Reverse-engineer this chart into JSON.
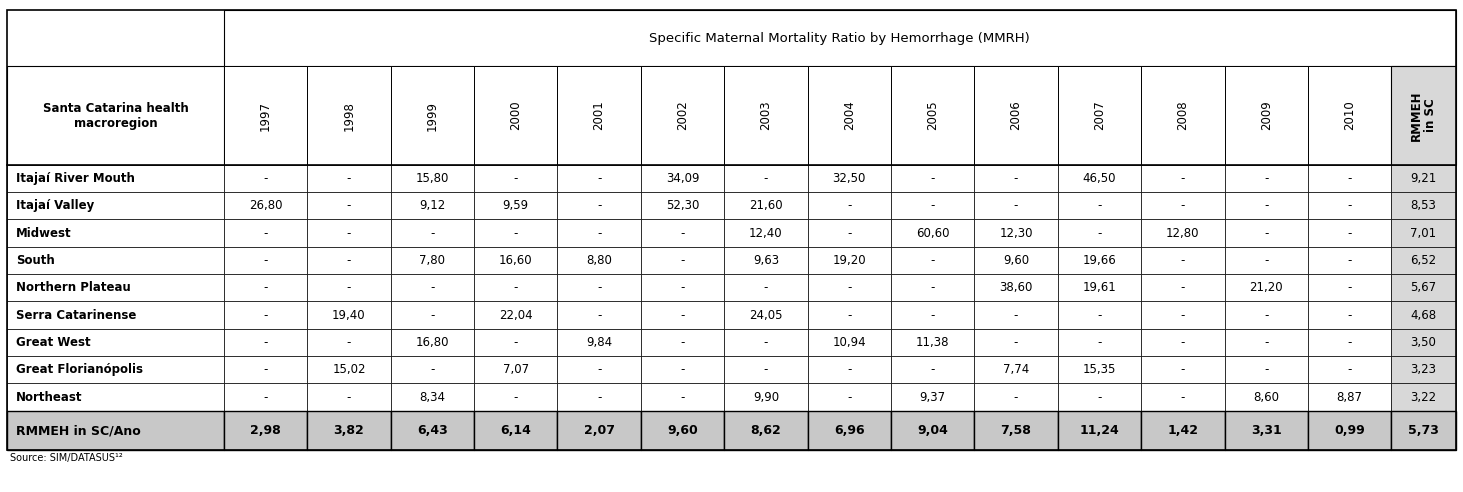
{
  "title": "Specific Maternal Mortality Ratio by Hemorrhage (MMRH)",
  "col_header_left": "Santa Catarina health\nmacroregion",
  "year_columns": [
    "1997",
    "1998",
    "1999",
    "2000",
    "2001",
    "2002",
    "2003",
    "2004",
    "2005",
    "2006",
    "2007",
    "2008",
    "2009",
    "2010"
  ],
  "last_col": "RMMEH\nin SC",
  "rows": [
    {
      "region": "Itajaí River Mouth",
      "values": [
        "-",
        "-",
        "15,80",
        "-",
        "-",
        "34,09",
        "-",
        "32,50",
        "-",
        "-",
        "46,50",
        "-",
        "-",
        "-"
      ],
      "last": "9,21"
    },
    {
      "region": "Itajaí Valley",
      "values": [
        "26,80",
        "-",
        "9,12",
        "9,59",
        "-",
        "52,30",
        "21,60",
        "-",
        "-",
        "-",
        "-",
        "-",
        "-",
        "-"
      ],
      "last": "8,53"
    },
    {
      "region": "Midwest",
      "values": [
        "-",
        "-",
        "-",
        "-",
        "-",
        "-",
        "12,40",
        "-",
        "60,60",
        "12,30",
        "-",
        "12,80",
        "-",
        "-"
      ],
      "last": "7,01"
    },
    {
      "region": "South",
      "values": [
        "-",
        "-",
        "7,80",
        "16,60",
        "8,80",
        "-",
        "9,63",
        "19,20",
        "-",
        "9,60",
        "19,66",
        "-",
        "-",
        "-"
      ],
      "last": "6,52"
    },
    {
      "region": "Northern Plateau",
      "values": [
        "-",
        "-",
        "-",
        "-",
        "-",
        "-",
        "-",
        "-",
        "-",
        "38,60",
        "19,61",
        "-",
        "21,20",
        "-"
      ],
      "last": "5,67"
    },
    {
      "region": "Serra Catarinense",
      "values": [
        "-",
        "19,40",
        "-",
        "22,04",
        "-",
        "-",
        "24,05",
        "-",
        "-",
        "-",
        "-",
        "-",
        "-",
        "-"
      ],
      "last": "4,68"
    },
    {
      "region": "Great West",
      "values": [
        "-",
        "-",
        "16,80",
        "-",
        "9,84",
        "-",
        "-",
        "10,94",
        "11,38",
        "-",
        "-",
        "-",
        "-",
        "-"
      ],
      "last": "3,50"
    },
    {
      "region": "Great Florianópolis",
      "values": [
        "-",
        "15,02",
        "-",
        "7,07",
        "-",
        "-",
        "-",
        "-",
        "-",
        "7,74",
        "15,35",
        "-",
        "-",
        "-"
      ],
      "last": "3,23"
    },
    {
      "region": "Northeast",
      "values": [
        "-",
        "-",
        "8,34",
        "-",
        "-",
        "-",
        "9,90",
        "-",
        "9,37",
        "-",
        "-",
        "-",
        "8,60",
        "8,87"
      ],
      "last": "3,22"
    }
  ],
  "footer_row": {
    "region": "RMMEH in SC/Ano",
    "values": [
      "2,98",
      "3,82",
      "6,43",
      "6,14",
      "2,07",
      "9,60",
      "8,62",
      "6,96",
      "9,04",
      "7,58",
      "11,24",
      "1,42",
      "3,31",
      "0,99"
    ],
    "last": "5,73"
  },
  "source": "Source: SIM/DATASUS¹²",
  "bg_color": "#ffffff",
  "last_col_bg": "#d8d8d8",
  "footer_bg": "#c8c8c8",
  "title_fontsize": 9.5,
  "cell_fontsize": 8.5,
  "header_fontsize": 8.5,
  "footer_fontsize": 9.0
}
